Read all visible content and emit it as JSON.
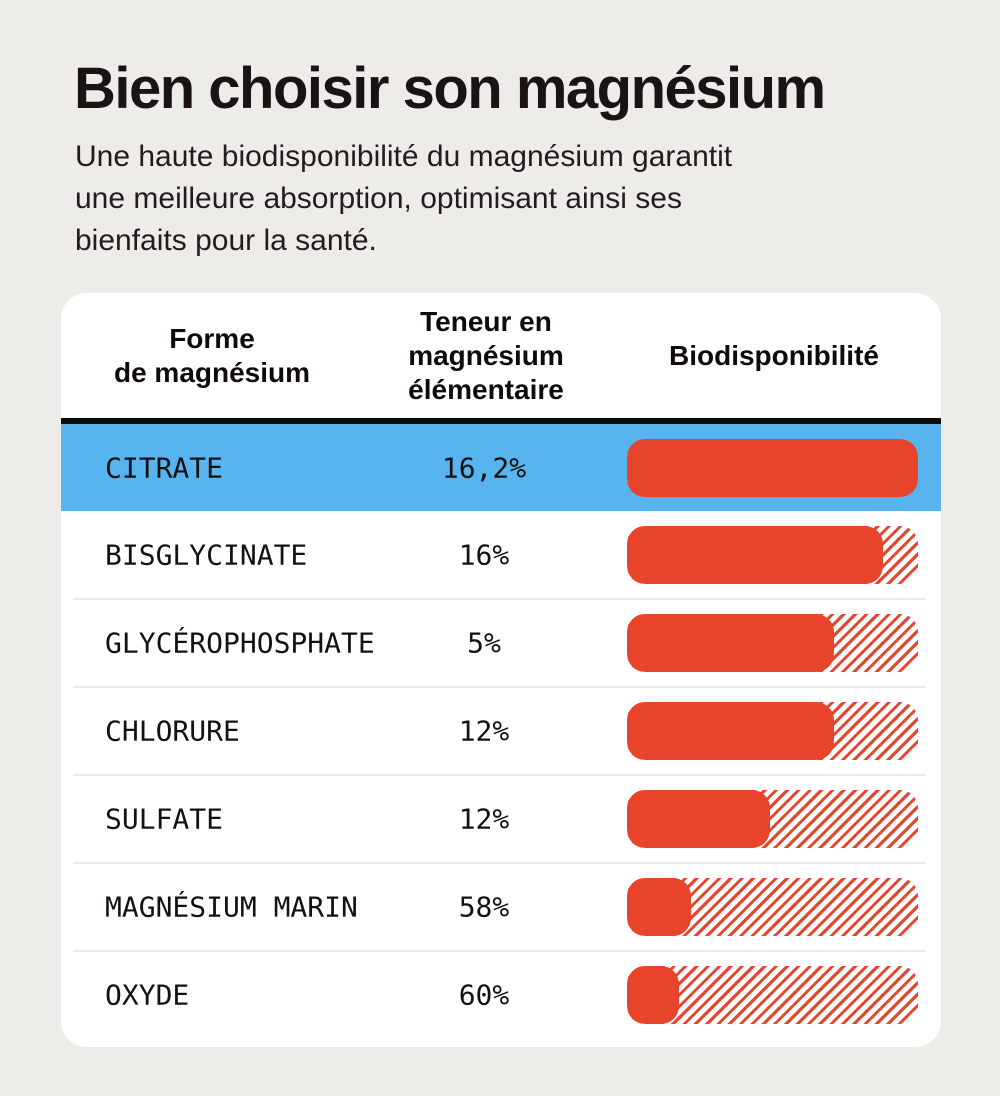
{
  "header": {
    "title": "Bien choisir son magnésium",
    "subtitle_lines": [
      "Une haute biodisponibilité du magnésium garantit",
      "une meilleure absorption, optimisant ainsi ses",
      "bienfaits pour la santé."
    ]
  },
  "table": {
    "columns": [
      {
        "lines": [
          "Forme",
          "de magnésium"
        ]
      },
      {
        "lines": [
          "Teneur en",
          "magnésium",
          "élémentaire"
        ]
      },
      {
        "lines": [
          "Biodisponibilité"
        ]
      }
    ],
    "rows": [
      {
        "label": "CITRATE",
        "teneur": "16,2%",
        "bio_fill_pct": 100,
        "highlighted": true
      },
      {
        "label": "BISGLYCINATE",
        "teneur": "16%",
        "bio_fill_pct": 88,
        "highlighted": false
      },
      {
        "label": "GLYCÉROPHOSPHATE",
        "teneur": "5%",
        "bio_fill_pct": 71,
        "highlighted": false
      },
      {
        "label": "CHLORURE",
        "teneur": "12%",
        "bio_fill_pct": 71,
        "highlighted": false
      },
      {
        "label": "SULFATE",
        "teneur": "12%",
        "bio_fill_pct": 49,
        "highlighted": false
      },
      {
        "label": "MAGNÉSIUM MARIN",
        "teneur": "58%",
        "bio_fill_pct": 22,
        "highlighted": false
      },
      {
        "label": "OXYDE",
        "teneur": "60%",
        "bio_fill_pct": 18,
        "highlighted": false
      }
    ]
  },
  "colors": {
    "background": "#edece9",
    "card": "#ffffff",
    "highlight_blue": "#57b4ef",
    "bar_red": "#e8432b",
    "text_dark": "#1b1313",
    "header_divider": "#0d0a0a",
    "row_separator": "#eceae8"
  },
  "chart_data": {
    "type": "bar",
    "orientation": "horizontal",
    "title": "Bien choisir son magnésium",
    "subtitle": "Une haute biodisponibilité du magnésium garantit une meilleure absorption, optimisant ainsi ses bienfaits pour la santé.",
    "categories": [
      "CITRATE",
      "BISGLYCINATE",
      "GLYCÉROPHOSPHATE",
      "CHLORURE",
      "SULFATE",
      "MAGNÉSIUM MARIN",
      "OXYDE"
    ],
    "series": [
      {
        "name": "Teneur en magnésium élémentaire (%)",
        "values": [
          16.2,
          16,
          5,
          12,
          12,
          58,
          60
        ]
      },
      {
        "name": "Biodisponibilité (longueur de barre pleine, % du maximum, estimée)",
        "values": [
          100,
          88,
          71,
          71,
          49,
          22,
          18
        ]
      }
    ],
    "legend_position": "none",
    "grid": false,
    "highlighted_category": "CITRATE",
    "bar_style": "solid red fill over red diagonal-hatch remainder"
  }
}
